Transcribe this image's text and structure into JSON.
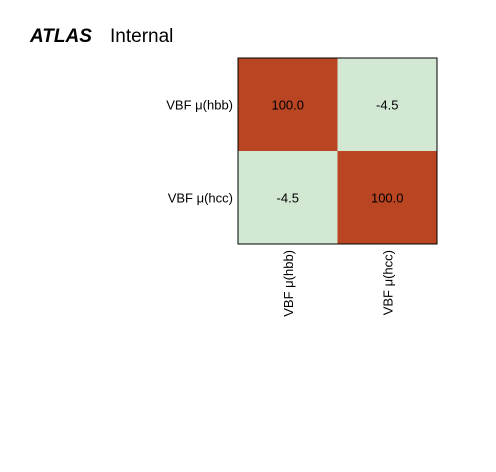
{
  "header": {
    "experiment": "ATLAS",
    "status": "Internal"
  },
  "chart_data": {
    "type": "heatmap",
    "x_labels": [
      "VBF μ(hbb)",
      "VBF μ(hcc)"
    ],
    "y_labels": [
      "VBF μ(hbb)",
      "VBF μ(hcc)"
    ],
    "values": [
      [
        100.0,
        -4.5
      ],
      [
        -4.5,
        100.0
      ]
    ],
    "cell_text": [
      [
        "100.0",
        "-4.5"
      ],
      [
        "-4.5",
        "100.0"
      ]
    ],
    "colors": {
      "high": "#b94522",
      "low": "#d3e8d3",
      "frame": "#000000"
    }
  }
}
